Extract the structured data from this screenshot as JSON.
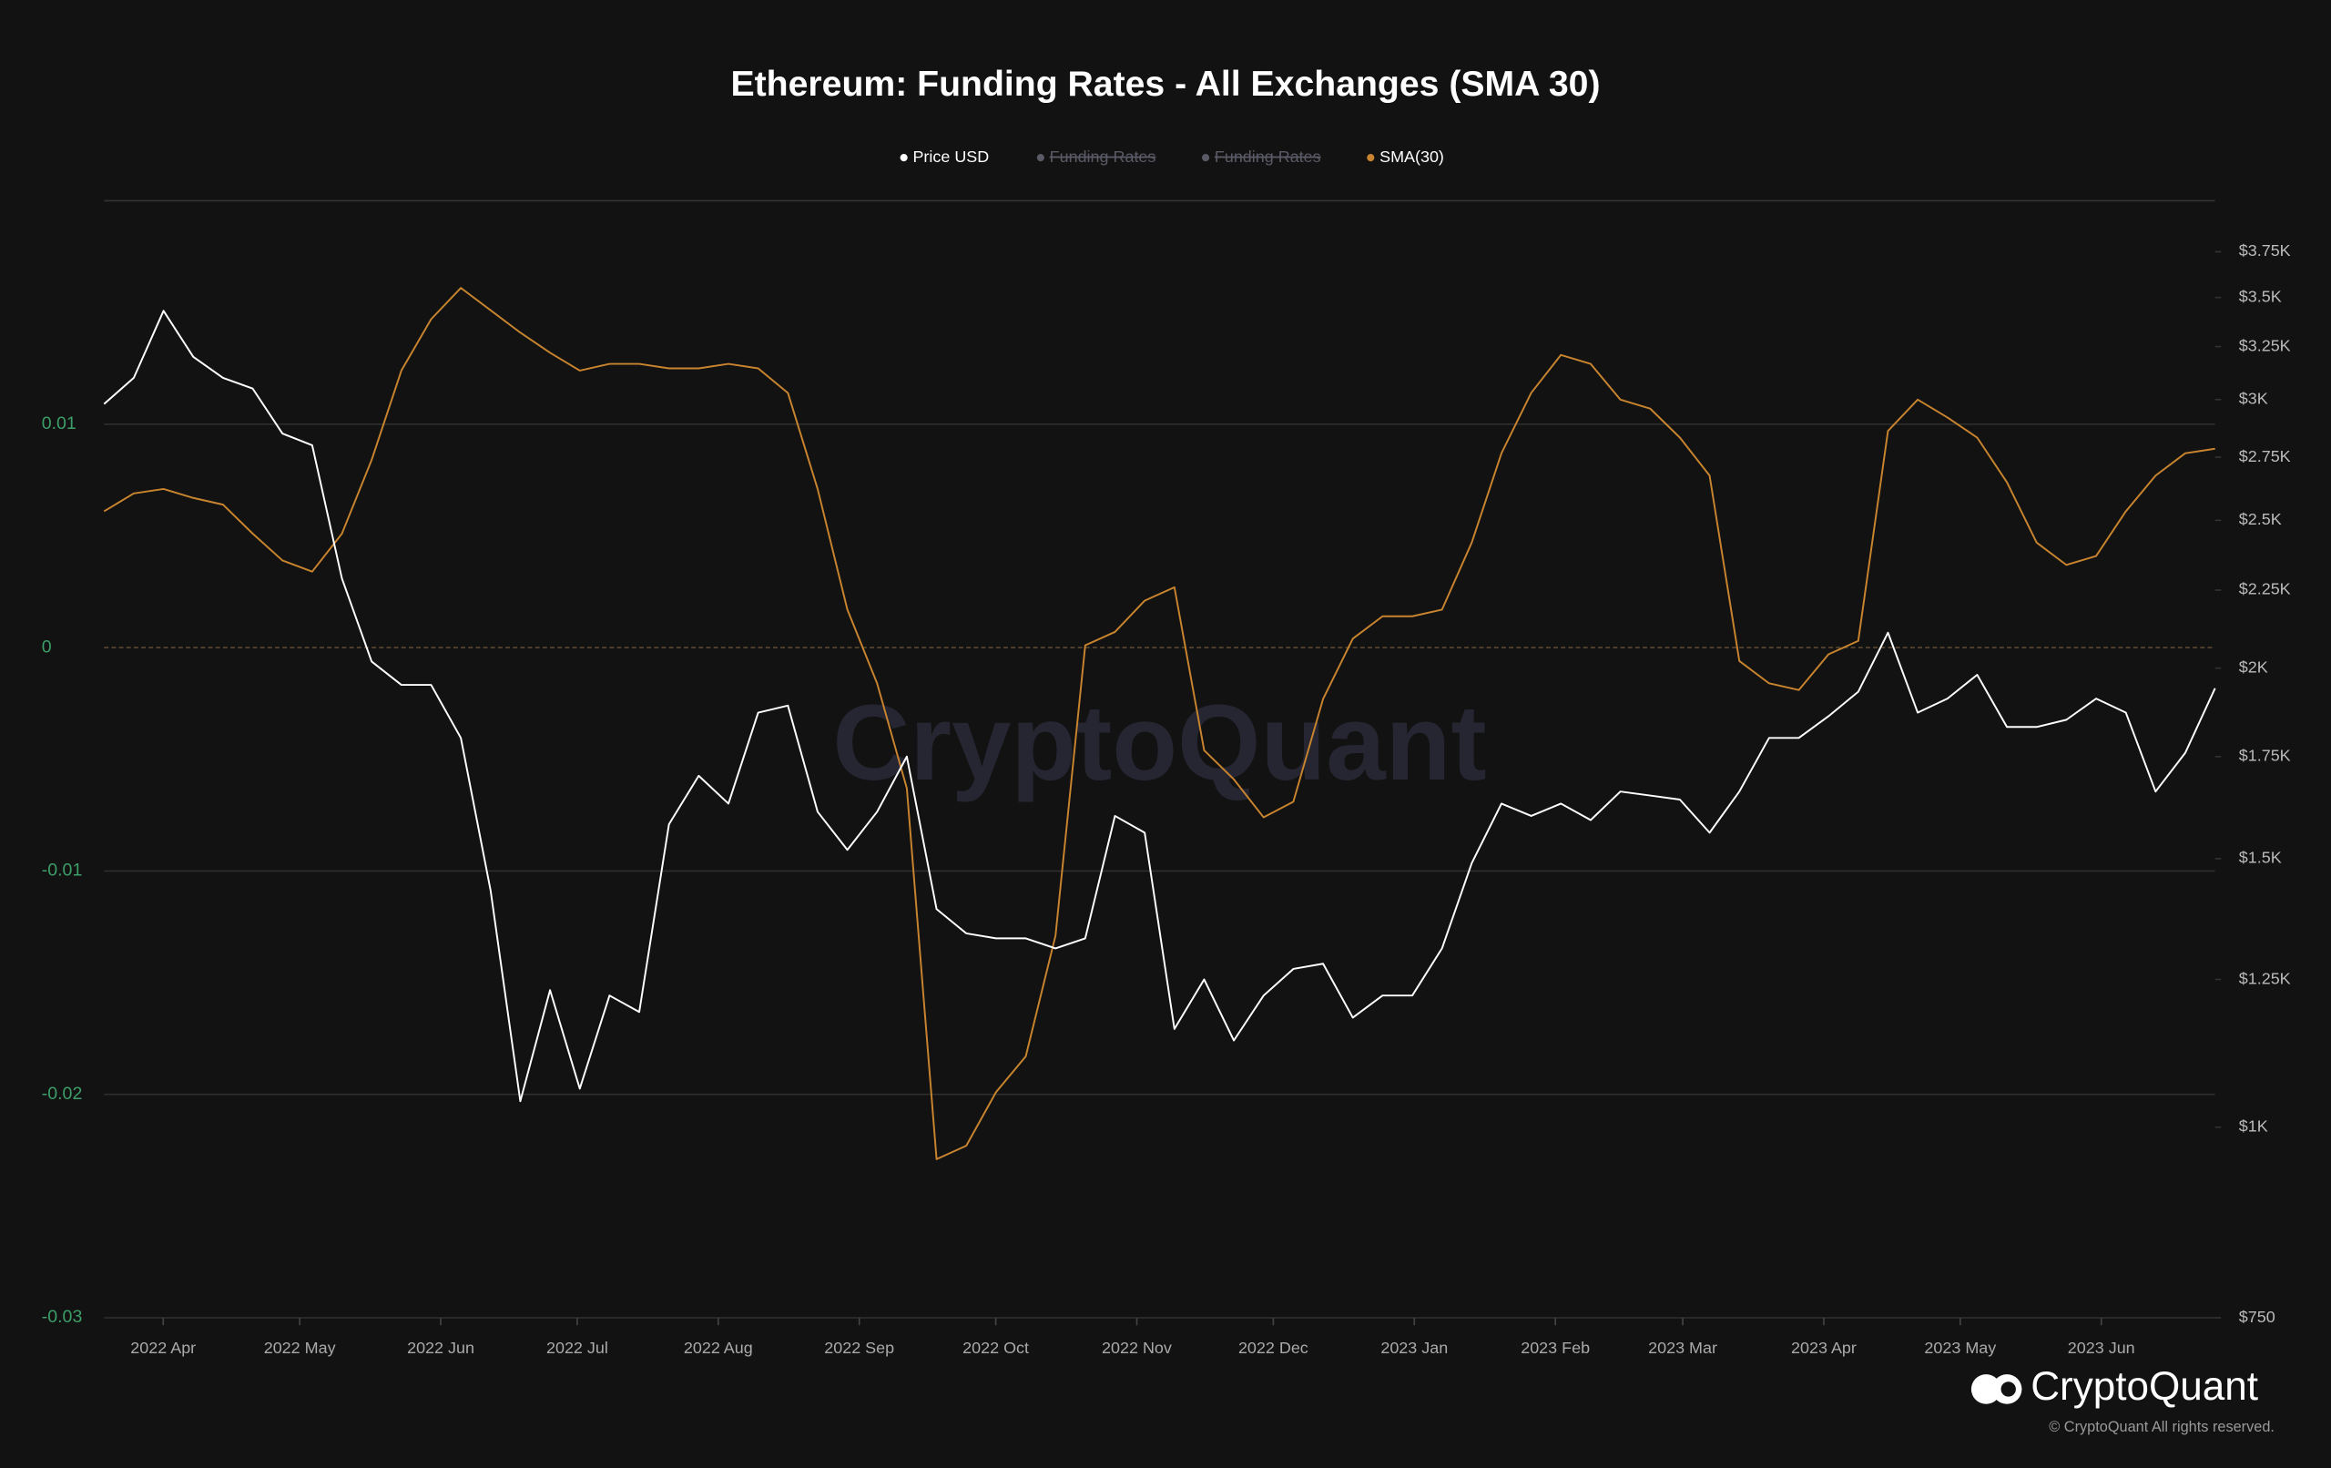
{
  "chart_data": {
    "type": "line",
    "title": "Ethereum: Funding Rates - All Exchanges (SMA 30)",
    "watermark": "CryptoQuant",
    "brand": "CryptoQuant",
    "copyright": "© CryptoQuant All rights reserved.",
    "xticks": [
      "2022 Apr",
      "2022 May",
      "2022 Jun",
      "2022 Jul",
      "2022 Aug",
      "2022 Sep",
      "2022 Oct",
      "2022 Nov",
      "2022 Dec",
      "2023 Jan",
      "2023 Feb",
      "2023 Mar",
      "2023 Apr",
      "2023 May",
      "2023 Jun"
    ],
    "ylim": [
      -0.03,
      0.02
    ],
    "yticks": [
      0.01,
      0,
      -0.01,
      -0.02,
      -0.03
    ],
    "y2lim": [
      750,
      4050
    ],
    "y2log": true,
    "y2ticks": [
      {
        "value": 750,
        "label": "$750"
      },
      {
        "value": 1000,
        "label": "$1K"
      },
      {
        "value": 1250,
        "label": "$1.25K"
      },
      {
        "value": 1500,
        "label": "$1.5K"
      },
      {
        "value": 1750,
        "label": "$1.75K"
      },
      {
        "value": 2000,
        "label": "$2K"
      },
      {
        "value": 2250,
        "label": "$2.25K"
      },
      {
        "value": 2500,
        "label": "$2.5K"
      },
      {
        "value": 2750,
        "label": "$2.75K"
      },
      {
        "value": 3000,
        "label": "$3K"
      },
      {
        "value": 3250,
        "label": "$3.25K"
      },
      {
        "value": 3500,
        "label": "$3.5K"
      },
      {
        "value": 3750,
        "label": "$3.75K"
      }
    ],
    "grid": true,
    "hidden_series": [
      {
        "name": "Funding Rates",
        "color": "#5a5a66"
      },
      {
        "name": "Funding Rates",
        "color": "#5a5a66"
      }
    ],
    "series": [
      {
        "name": "Price USD",
        "color": "#ffffff",
        "axis": "y2",
        "values": [
          2980,
          3100,
          3430,
          3200,
          3100,
          3050,
          2850,
          2800,
          2290,
          2020,
          1950,
          1950,
          1800,
          1430,
          1040,
          1230,
          1060,
          1220,
          1190,
          1580,
          1700,
          1630,
          1870,
          1890,
          1610,
          1520,
          1610,
          1750,
          1390,
          1340,
          1330,
          1330,
          1310,
          1330,
          1600,
          1560,
          1160,
          1250,
          1140,
          1220,
          1270,
          1280,
          1180,
          1220,
          1220,
          1310,
          1490,
          1630,
          1600,
          1630,
          1590,
          1660,
          1650,
          1640,
          1560,
          1660,
          1800,
          1800,
          1860,
          1930,
          2110,
          1870,
          1910,
          1980,
          1830,
          1830,
          1850,
          1910,
          1870,
          1660,
          1760,
          1940
        ]
      },
      {
        "name": "SMA(30)",
        "color": "#c8842e",
        "values": [
          0.0061,
          0.0069,
          0.0071,
          0.0067,
          0.0064,
          0.0051,
          0.0039,
          0.0034,
          0.0051,
          0.0084,
          0.0124,
          0.0147,
          0.0161,
          0.0151,
          0.0141,
          0.0132,
          0.0124,
          0.0127,
          0.0127,
          0.0125,
          0.0125,
          0.0127,
          0.0125,
          0.0114,
          0.0071,
          0.0017,
          -0.0016,
          -0.0063,
          -0.0229,
          -0.0223,
          -0.0199,
          -0.0183,
          -0.0129,
          0.0001,
          0.0007,
          0.0021,
          0.0027,
          -0.0046,
          -0.0059,
          -0.0076,
          -0.0069,
          -0.0023,
          0.0004,
          0.0014,
          0.0014,
          0.0017,
          0.0047,
          0.0087,
          0.0114,
          0.0131,
          0.0127,
          0.0111,
          0.0107,
          0.0094,
          0.0077,
          -0.0006,
          -0.0016,
          -0.0019,
          -0.0003,
          0.0003,
          0.0097,
          0.0111,
          0.0103,
          0.0094,
          0.0074,
          0.0047,
          0.0037,
          0.0041,
          0.0061,
          0.0077,
          0.0087,
          0.0089
        ]
      }
    ]
  }
}
